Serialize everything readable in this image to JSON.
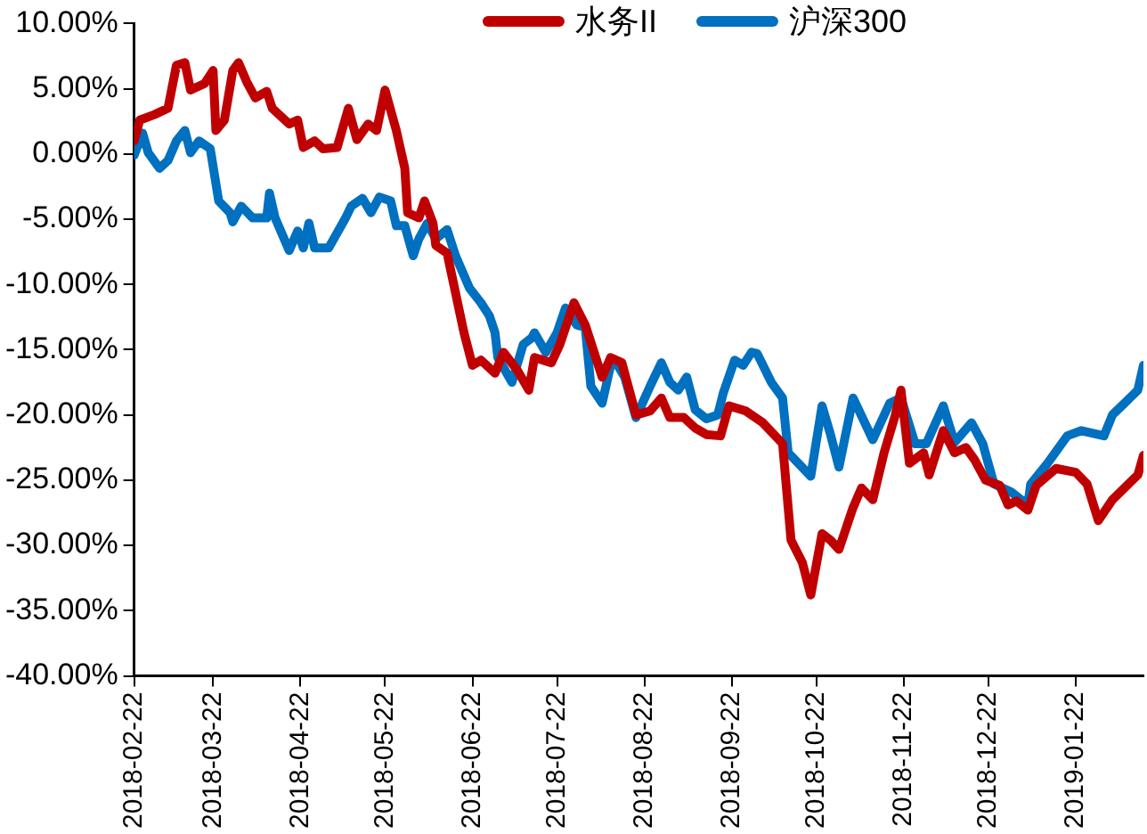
{
  "chart_data": {
    "type": "line",
    "legend": "top",
    "grid": false,
    "marker": "none",
    "line_style": "solid",
    "xlim": [
      "2018-02-22",
      "2019-02-15"
    ],
    "xticks": [
      "2018-02-22",
      "2018-03-22",
      "2018-04-22",
      "2018-05-22",
      "2018-06-22",
      "2018-07-22",
      "2018-08-22",
      "2018-09-22",
      "2018-10-22",
      "2018-11-22",
      "2018-12-22",
      "2019-01-22"
    ],
    "ylim": [
      -40,
      10
    ],
    "yticks": [
      {
        "value": -40,
        "label": "-40.00%"
      },
      {
        "value": -35,
        "label": "-35.00%"
      },
      {
        "value": -30,
        "label": "-30.00%"
      },
      {
        "value": -25,
        "label": "-25.00%"
      },
      {
        "value": -20,
        "label": "-20.00%"
      },
      {
        "value": -15,
        "label": "-15.00%"
      },
      {
        "value": -10,
        "label": "-10.00%"
      },
      {
        "value": -5,
        "label": "-5.00%"
      },
      {
        "value": 0,
        "label": "0.00%"
      },
      {
        "value": 5,
        "label": "5.00%"
      },
      {
        "value": 10,
        "label": "10.00%"
      }
    ],
    "series": [
      {
        "name": "水务II",
        "color": "#c00000",
        "x": [
          "2018-02-22",
          "2018-02-24",
          "2018-03-01",
          "2018-03-06",
          "2018-03-09",
          "2018-03-12",
          "2018-03-14",
          "2018-03-19",
          "2018-03-22",
          "2018-03-23",
          "2018-03-26",
          "2018-03-29",
          "2018-03-31",
          "2018-04-03",
          "2018-04-06",
          "2018-04-10",
          "2018-04-12",
          "2018-04-18",
          "2018-04-21",
          "2018-04-23",
          "2018-04-27",
          "2018-04-30",
          "2018-05-05",
          "2018-05-09",
          "2018-05-12",
          "2018-05-16",
          "2018-05-19",
          "2018-05-22",
          "2018-05-26",
          "2018-05-29",
          "2018-05-30",
          "2018-06-03",
          "2018-06-05",
          "2018-06-08",
          "2018-06-09",
          "2018-06-13",
          "2018-06-19",
          "2018-06-22",
          "2018-06-25",
          "2018-06-30",
          "2018-07-03",
          "2018-07-08",
          "2018-07-12",
          "2018-07-14",
          "2018-07-20",
          "2018-07-23",
          "2018-07-28",
          "2018-08-01",
          "2018-08-07",
          "2018-08-10",
          "2018-08-14",
          "2018-08-19",
          "2018-08-24",
          "2018-08-28",
          "2018-08-31",
          "2018-09-05",
          "2018-09-09",
          "2018-09-13",
          "2018-09-18",
          "2018-09-21",
          "2018-09-27",
          "2018-10-03",
          "2018-10-10",
          "2018-10-13",
          "2018-10-17",
          "2018-10-20",
          "2018-10-24",
          "2018-10-27",
          "2018-10-30",
          "2018-11-04",
          "2018-11-07",
          "2018-11-11",
          "2018-11-15",
          "2018-11-19",
          "2018-11-21",
          "2018-11-24",
          "2018-11-29",
          "2018-12-01",
          "2018-12-06",
          "2018-12-10",
          "2018-12-14",
          "2018-12-17",
          "2018-12-21",
          "2018-12-26",
          "2018-12-29",
          "2019-01-01",
          "2019-01-05",
          "2019-01-08",
          "2019-01-15",
          "2019-01-22",
          "2019-01-26",
          "2019-01-30",
          "2019-02-04",
          "2019-02-13",
          "2019-02-15"
        ],
        "values": [
          1.0,
          2.6,
          3.0,
          3.5,
          6.8,
          7.0,
          4.9,
          5.4,
          6.4,
          1.8,
          2.6,
          6.4,
          7.0,
          5.5,
          4.3,
          4.8,
          3.5,
          2.3,
          2.6,
          0.5,
          1.0,
          0.4,
          0.5,
          3.5,
          1.1,
          2.3,
          1.8,
          4.9,
          1.8,
          -1.1,
          -4.5,
          -4.9,
          -3.6,
          -5.3,
          -7.0,
          -7.6,
          -13.7,
          -16.2,
          -15.8,
          -16.8,
          -15.2,
          -16.6,
          -18.1,
          -15.6,
          -16.0,
          -14.6,
          -11.4,
          -13.1,
          -17.1,
          -15.6,
          -16.0,
          -20.0,
          -19.7,
          -18.7,
          -20.2,
          -20.2,
          -21.0,
          -21.5,
          -21.6,
          -19.3,
          -19.7,
          -20.6,
          -22.2,
          -29.6,
          -31.3,
          -33.8,
          -29.1,
          -29.6,
          -30.3,
          -27.1,
          -25.6,
          -26.5,
          -22.9,
          -20.0,
          -18.1,
          -23.7,
          -22.9,
          -24.6,
          -21.2,
          -22.9,
          -22.5,
          -23.4,
          -25.0,
          -25.4,
          -26.9,
          -26.6,
          -27.3,
          -25.4,
          -24.1,
          -24.4,
          -25.3,
          -28.1,
          -26.5,
          -24.6,
          -23.1
        ]
      },
      {
        "name": "沪深300",
        "color": "#0070c0",
        "x": [
          "2018-02-22",
          "2018-02-25",
          "2018-02-27",
          "2018-03-03",
          "2018-03-06",
          "2018-03-09",
          "2018-03-12",
          "2018-03-14",
          "2018-03-17",
          "2018-03-21",
          "2018-03-24",
          "2018-03-28",
          "2018-03-29",
          "2018-04-01",
          "2018-04-05",
          "2018-04-10",
          "2018-04-11",
          "2018-04-13",
          "2018-04-18",
          "2018-04-21",
          "2018-04-23",
          "2018-04-25",
          "2018-04-27",
          "2018-05-02",
          "2018-05-08",
          "2018-05-10",
          "2018-05-14",
          "2018-05-17",
          "2018-05-20",
          "2018-05-24",
          "2018-05-26",
          "2018-05-29",
          "2018-06-01",
          "2018-06-03",
          "2018-06-06",
          "2018-06-09",
          "2018-06-13",
          "2018-06-16",
          "2018-06-21",
          "2018-06-25",
          "2018-06-28",
          "2018-06-30",
          "2018-07-01",
          "2018-07-06",
          "2018-07-10",
          "2018-07-13",
          "2018-07-14",
          "2018-07-18",
          "2018-07-22",
          "2018-07-25",
          "2018-07-29",
          "2018-08-01",
          "2018-08-03",
          "2018-08-07",
          "2018-08-10",
          "2018-08-12",
          "2018-08-15",
          "2018-08-19",
          "2018-08-24",
          "2018-08-28",
          "2018-08-31",
          "2018-09-03",
          "2018-09-06",
          "2018-09-09",
          "2018-09-13",
          "2018-09-17",
          "2018-09-19",
          "2018-09-23",
          "2018-09-26",
          "2018-09-29",
          "2018-10-01",
          "2018-10-06",
          "2018-10-10",
          "2018-10-12",
          "2018-10-20",
          "2018-10-24",
          "2018-10-27",
          "2018-10-30",
          "2018-11-04",
          "2018-11-11",
          "2018-11-17",
          "2018-11-21",
          "2018-11-26",
          "2018-11-30",
          "2018-12-06",
          "2018-12-10",
          "2018-12-16",
          "2018-12-20",
          "2018-12-24",
          "2018-12-30",
          "2019-01-05",
          "2019-01-06",
          "2019-01-12",
          "2019-01-19",
          "2019-01-24",
          "2019-02-01",
          "2019-02-04",
          "2019-02-13",
          "2019-02-15"
        ],
        "values": [
          -0.1,
          1.6,
          0.1,
          -1.1,
          -0.5,
          1.0,
          1.8,
          0.1,
          1.0,
          0.4,
          -3.6,
          -4.5,
          -5.2,
          -4.0,
          -4.9,
          -4.9,
          -3.0,
          -4.9,
          -7.4,
          -5.9,
          -7.2,
          -5.3,
          -7.2,
          -7.2,
          -4.9,
          -4.0,
          -3.4,
          -4.5,
          -3.3,
          -3.6,
          -5.5,
          -5.5,
          -7.8,
          -6.5,
          -5.3,
          -6.5,
          -5.8,
          -7.8,
          -10.3,
          -11.4,
          -12.4,
          -13.7,
          -15.6,
          -17.5,
          -14.6,
          -14.1,
          -13.7,
          -15.2,
          -13.7,
          -11.8,
          -13.1,
          -13.3,
          -17.8,
          -19.1,
          -16.2,
          -16.0,
          -17.1,
          -20.2,
          -17.8,
          -16.0,
          -17.5,
          -18.1,
          -17.1,
          -19.6,
          -20.3,
          -20.0,
          -18.3,
          -15.8,
          -16.2,
          -15.2,
          -15.3,
          -17.5,
          -18.7,
          -22.9,
          -24.7,
          -19.3,
          -21.5,
          -24.0,
          -18.7,
          -21.9,
          -19.1,
          -18.7,
          -22.2,
          -22.2,
          -19.3,
          -22.1,
          -20.6,
          -22.2,
          -25.3,
          -25.9,
          -26.9,
          -25.3,
          -23.7,
          -21.6,
          -21.2,
          -21.6,
          -20.0,
          -18.1,
          -16.2
        ]
      }
    ]
  }
}
